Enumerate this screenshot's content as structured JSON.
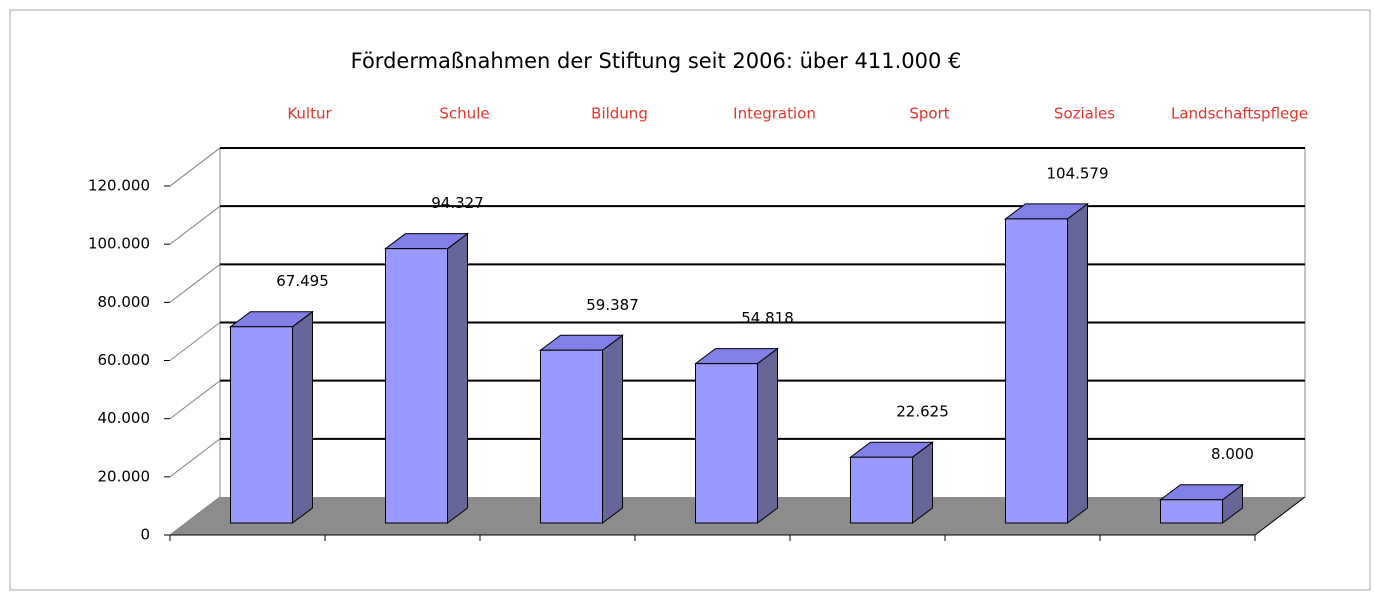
{
  "chart_data": {
    "type": "bar3d",
    "title": "Fördermaßnahmen der Stiftung seit 2006: über 411.000 €",
    "categories": [
      "Kultur",
      "Schule",
      "Bildung",
      "Integration",
      "Sport",
      "Soziales",
      "Landschaftspflege"
    ],
    "values": [
      67495,
      94327,
      59387,
      54818,
      22625,
      104579,
      8000
    ],
    "value_labels": [
      "67.495",
      "94.327",
      "59.387",
      "54.818",
      "22.625",
      "104.579",
      "8.000"
    ],
    "color": "#9999ff",
    "ylim": [
      0,
      120000
    ],
    "yticks": [
      0,
      {
        "value": 20000,
        "label": "20.000"
      },
      {
        "value": 40000,
        "label": "40.000"
      },
      {
        "value": 60000,
        "label": "60.000"
      },
      {
        "value": 80000,
        "label": "80.000"
      },
      {
        "value": 100000,
        "label": "100.000"
      },
      {
        "value": 120000,
        "label": "120.000"
      }
    ],
    "grid": true
  }
}
